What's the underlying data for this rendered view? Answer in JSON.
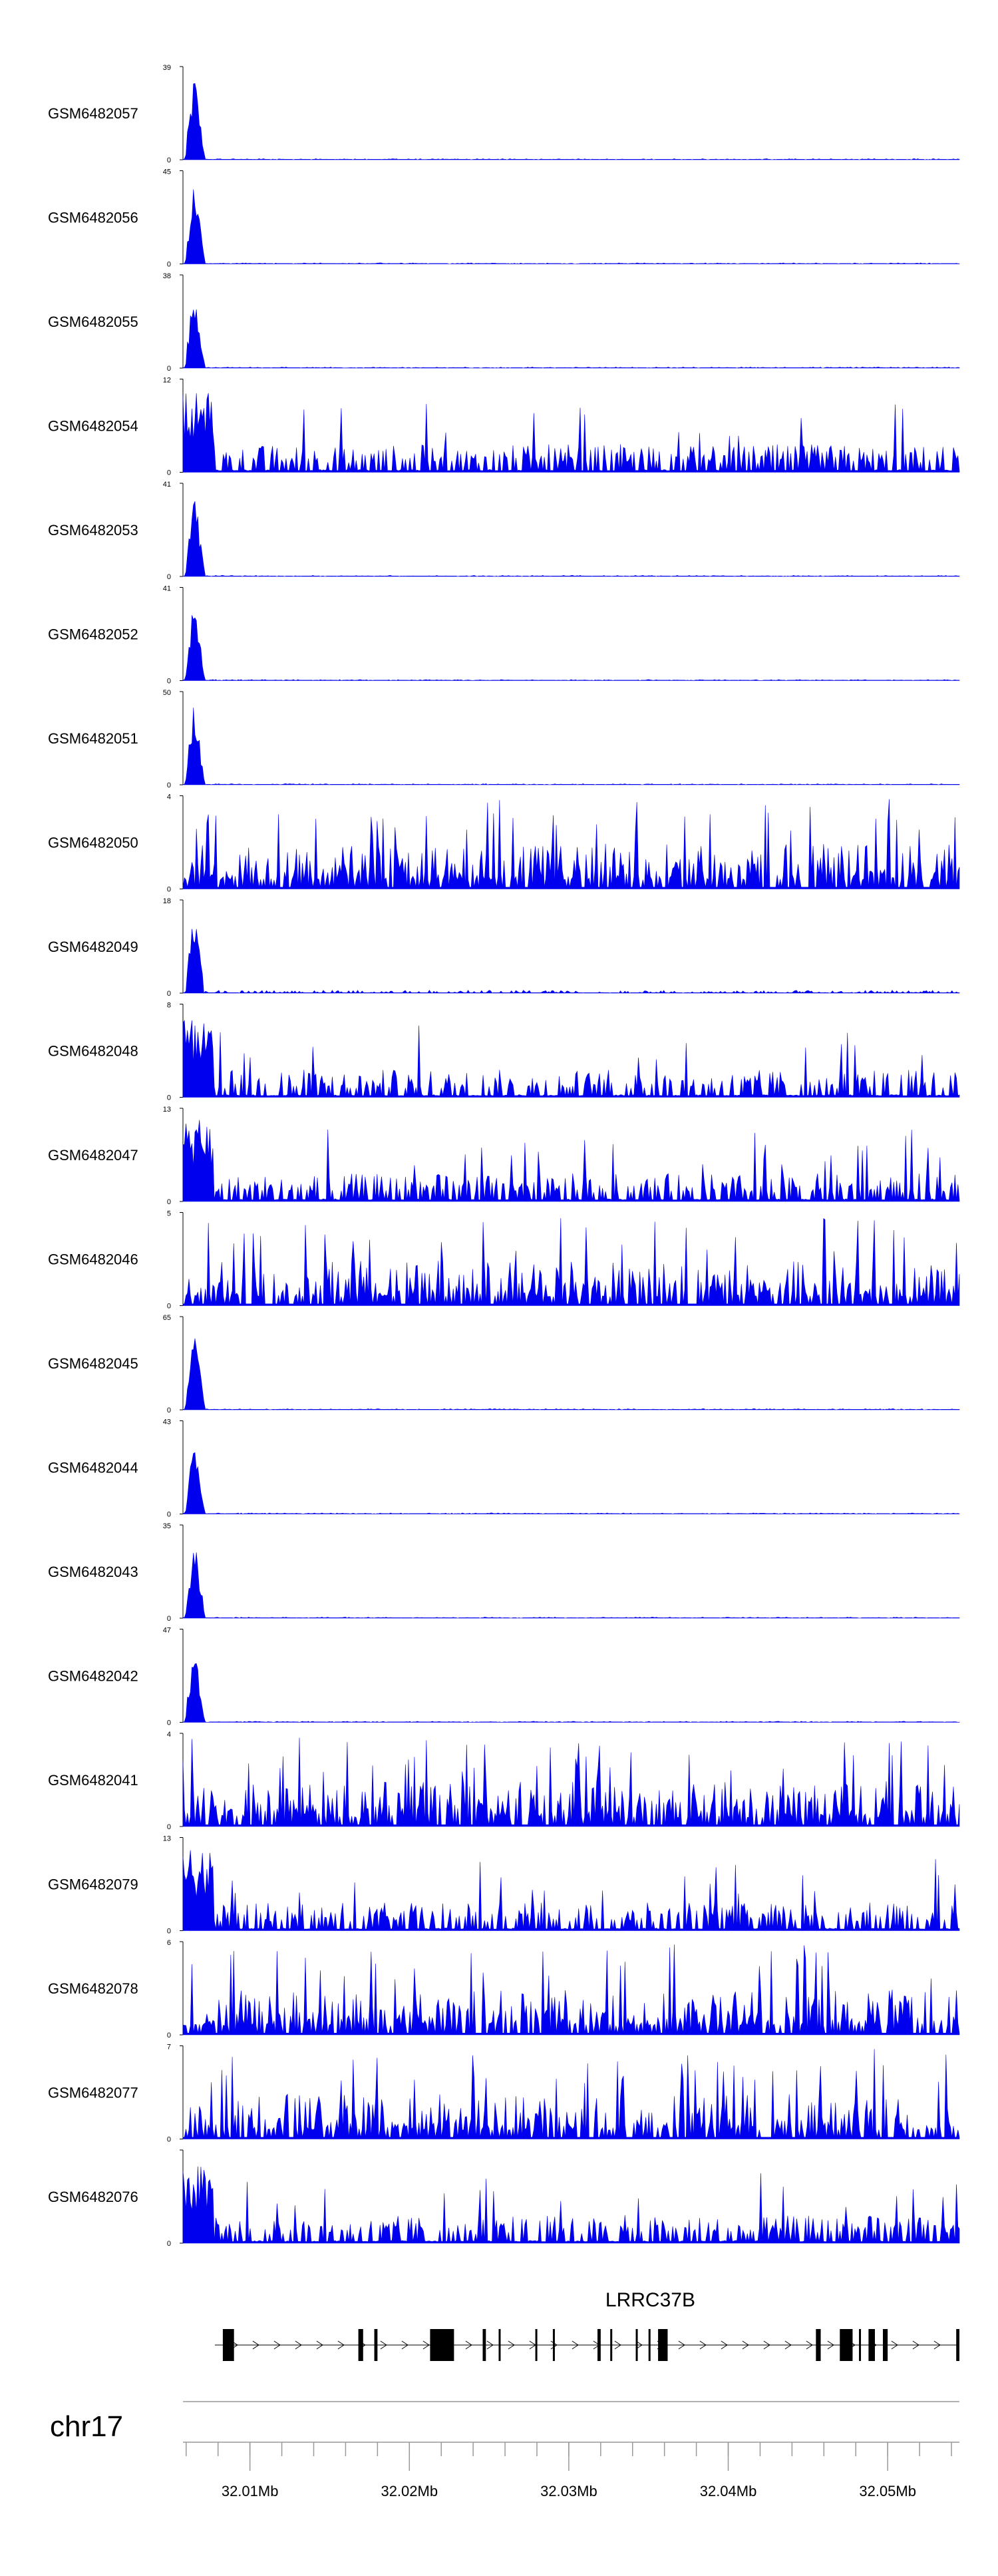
{
  "colors": {
    "signal": "#0000ee",
    "axis": "#000000",
    "gene": "#000000",
    "rule": "#999999"
  },
  "chart_data": {
    "type": "area",
    "tracks": [
      {
        "name": "GSM6482057",
        "ymax": "39",
        "profile": "peak"
      },
      {
        "name": "GSM6482056",
        "ymax": "45",
        "profile": "peak"
      },
      {
        "name": "GSM6482055",
        "ymax": "38",
        "profile": "peak"
      },
      {
        "name": "GSM6482054",
        "ymax": "12",
        "profile": "broad"
      },
      {
        "name": "GSM6482053",
        "ymax": "41",
        "profile": "peak"
      },
      {
        "name": "GSM6482052",
        "ymax": "41",
        "profile": "peak"
      },
      {
        "name": "GSM6482051",
        "ymax": "50",
        "profile": "peak"
      },
      {
        "name": "GSM6482050",
        "ymax": "4",
        "profile": "noisy"
      },
      {
        "name": "GSM6482049",
        "ymax": "18",
        "profile": "peak-mid"
      },
      {
        "name": "GSM6482048",
        "ymax": "8",
        "profile": "broad"
      },
      {
        "name": "GSM6482047",
        "ymax": "13",
        "profile": "broad"
      },
      {
        "name": "GSM6482046",
        "ymax": "5",
        "profile": "noisy"
      },
      {
        "name": "GSM6482045",
        "ymax": "65",
        "profile": "peak"
      },
      {
        "name": "GSM6482044",
        "ymax": "43",
        "profile": "peak"
      },
      {
        "name": "GSM6482043",
        "ymax": "35",
        "profile": "peak"
      },
      {
        "name": "GSM6482042",
        "ymax": "47",
        "profile": "peak"
      },
      {
        "name": "GSM6482041",
        "ymax": "4",
        "profile": "noisy"
      },
      {
        "name": "GSM6482079",
        "ymax": "13",
        "profile": "broad"
      },
      {
        "name": "GSM6482078",
        "ymax": "6",
        "profile": "noisy"
      },
      {
        "name": "GSM6482077",
        "ymax": "7",
        "profile": "noisy"
      },
      {
        "name": "GSM6482076",
        "ymax": "",
        "profile": "broad"
      }
    ],
    "ymin_label": "0",
    "gene": {
      "name": "LRRC37B",
      "start_mb": 32.0078,
      "end_mb": 32.0545
    },
    "exons_mb": [
      [
        32.0083,
        32.009
      ],
      [
        32.0168,
        32.0171
      ],
      [
        32.0178,
        32.018
      ],
      [
        32.0213,
        32.0228
      ],
      [
        32.0246,
        32.0248
      ],
      [
        32.0256,
        32.0257
      ],
      [
        32.0279,
        32.028
      ],
      [
        32.029,
        32.0291
      ],
      [
        32.0318,
        32.032
      ],
      [
        32.0326,
        32.0327
      ],
      [
        32.0342,
        32.0343
      ],
      [
        32.035,
        32.0351
      ],
      [
        32.0356,
        32.0362
      ],
      [
        32.0455,
        32.0458
      ],
      [
        32.047,
        32.0478
      ],
      [
        32.0482,
        32.0483
      ],
      [
        32.0488,
        32.0492
      ],
      [
        32.0497,
        32.05
      ],
      [
        32.0543,
        32.0545
      ]
    ],
    "chromosome": "chr17",
    "x_range_mb": [
      32.0058,
      32.0545
    ],
    "x_ticks": [
      {
        "value": 32.01,
        "label": "32.01Mb"
      },
      {
        "value": 32.02,
        "label": "32.02Mb"
      },
      {
        "value": 32.03,
        "label": "32.03Mb"
      },
      {
        "value": 32.04,
        "label": "32.04Mb"
      },
      {
        "value": 32.05,
        "label": "32.05Mb"
      }
    ],
    "minor_tick_step_mb": 0.002
  }
}
